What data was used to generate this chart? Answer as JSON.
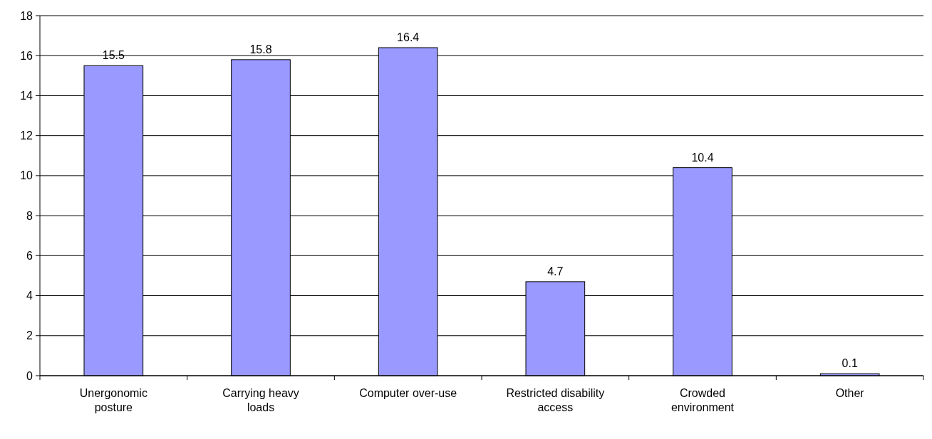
{
  "chart_data": {
    "type": "bar",
    "categories": [
      "Unergonomic posture",
      "Carrying heavy loads",
      "Computer over-use",
      "Restricted disability access",
      "Crowded environment",
      "Other"
    ],
    "values": [
      15.5,
      15.8,
      16.4,
      4.7,
      10.4,
      0.1
    ],
    "color": "#9999ff",
    "ylim": [
      0,
      18
    ],
    "yticks": [
      0,
      2,
      4,
      6,
      8,
      10,
      12,
      14,
      16,
      18
    ],
    "grid": "y",
    "data_labels": true
  }
}
